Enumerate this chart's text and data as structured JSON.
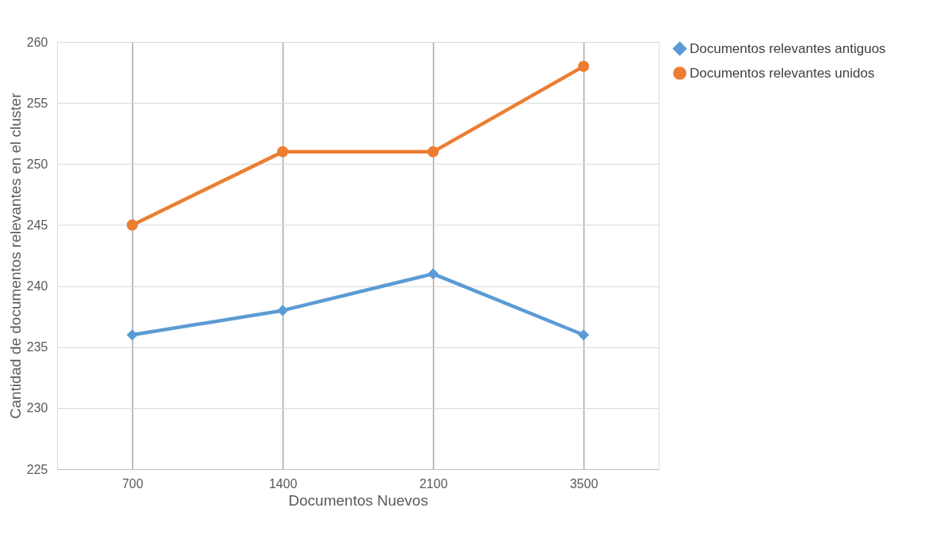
{
  "chart_data": {
    "type": "line",
    "xlabel": "Documentos Nuevos",
    "ylabel": "Cantidad de documentos relevantes en el cluster",
    "categories": [
      "700",
      "1400",
      "2100",
      "3500"
    ],
    "series": [
      {
        "name": "Documentos relevantes antiguos",
        "color": "#5b9bd5",
        "marker": "diamond",
        "values": [
          236,
          238,
          241,
          236
        ]
      },
      {
        "name": "Documentos relevantes unidos",
        "color": "#ed7d31",
        "marker": "circle",
        "values": [
          245,
          251,
          251,
          258
        ]
      }
    ],
    "ylim": [
      225,
      260
    ],
    "yticks": [
      225,
      230,
      235,
      240,
      245,
      250,
      255,
      260
    ],
    "grid": true,
    "legend": "right",
    "line_style": "solid"
  }
}
